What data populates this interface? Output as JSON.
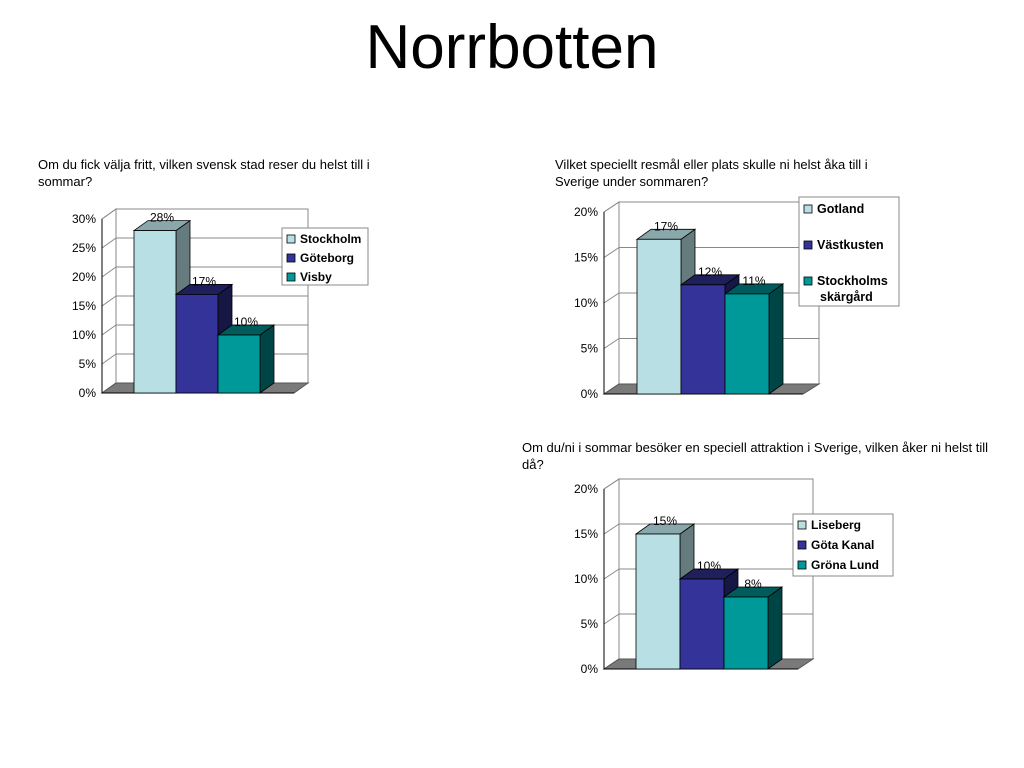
{
  "title": "Norrbotten",
  "chart_data": [
    {
      "type": "bar",
      "question": "Om du fick välja fritt, vilken svensk stad reser du helst till i sommar?",
      "categories": [
        "Stockholm",
        "Göteborg",
        "Visby"
      ],
      "values": [
        28,
        17,
        10
      ],
      "value_labels": [
        "28%",
        "17%",
        "10%"
      ],
      "ylim": [
        0,
        30
      ],
      "yticks": [
        "0%",
        "5%",
        "10%",
        "15%",
        "20%",
        "25%",
        "30%"
      ],
      "legend_position": "top-right",
      "grid": true
    },
    {
      "type": "bar",
      "question": "Vilket speciellt resmål eller plats skulle ni helst åka till i Sverige under sommaren?",
      "categories": [
        "Gotland",
        "Västkusten",
        "Stockholms skärgård"
      ],
      "values": [
        17,
        12,
        11
      ],
      "value_labels": [
        "17%",
        "12%",
        "11%"
      ],
      "ylim": [
        0,
        20
      ],
      "yticks": [
        "0%",
        "5%",
        "10%",
        "15%",
        "20%"
      ],
      "legend_position": "right",
      "grid": true
    },
    {
      "type": "bar",
      "question": "Om du/ni i sommar besöker en speciell attraktion i Sverige, vilken åker ni helst till då?",
      "categories": [
        "Liseberg",
        "Göta Kanal",
        "Gröna Lund"
      ],
      "values": [
        15,
        10,
        8
      ],
      "value_labels": [
        "15%",
        "10%",
        "8%"
      ],
      "ylim": [
        0,
        20
      ],
      "yticks": [
        "0%",
        "5%",
        "10%",
        "15%",
        "20%"
      ],
      "legend_position": "right",
      "grid": true
    }
  ],
  "colors": {
    "series": [
      "#b8e0e4",
      "#333399",
      "#009999"
    ],
    "floor": "#7a7a7a",
    "grid": "#888888"
  }
}
